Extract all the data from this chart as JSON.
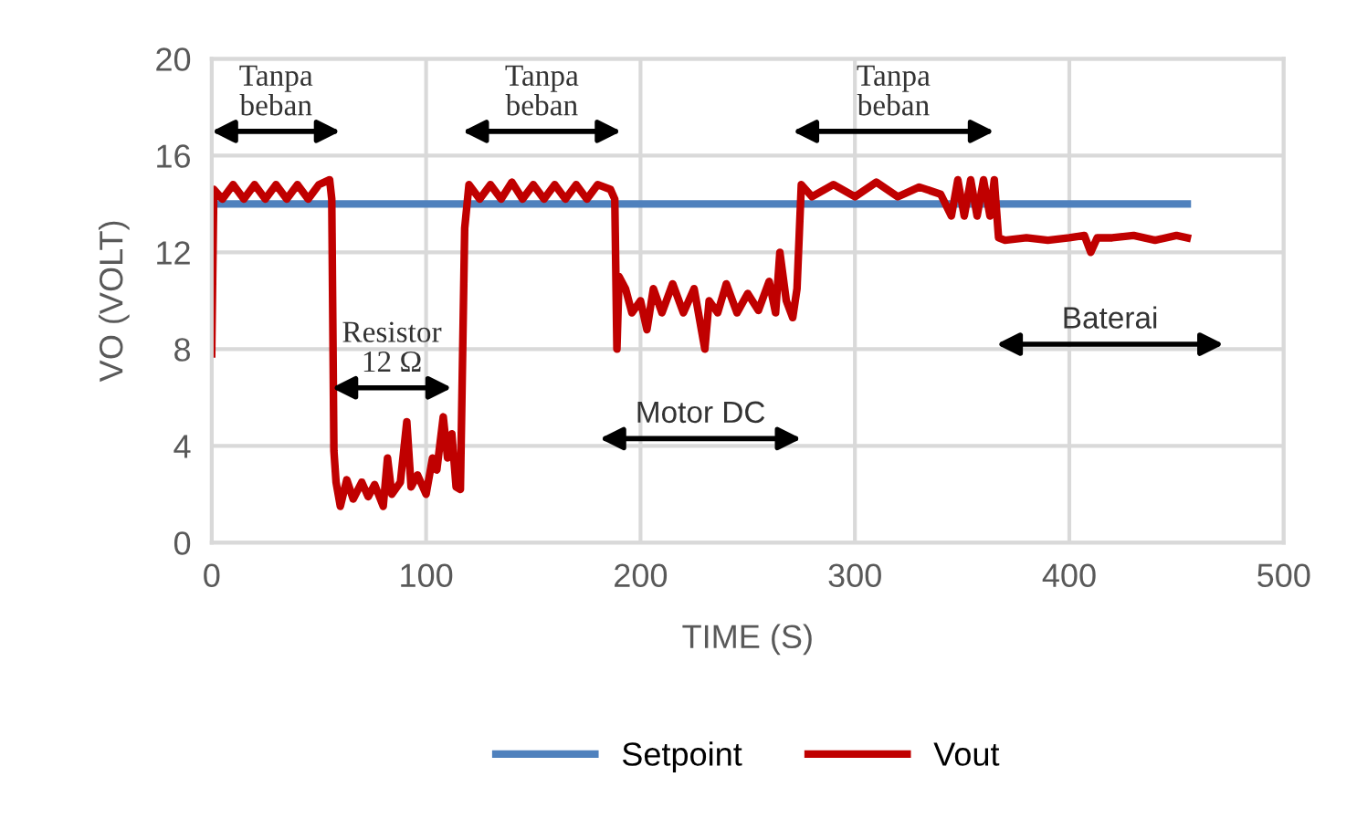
{
  "chart_data": {
    "type": "line",
    "xlabel": "TIME (S)",
    "ylabel": "VO (VOLT)",
    "xlim": [
      0,
      500
    ],
    "xticks": [
      0,
      100,
      200,
      300,
      400,
      500
    ],
    "ylim": [
      0,
      20
    ],
    "yticks": [
      0,
      4,
      8,
      12,
      16,
      20
    ],
    "grid": true,
    "legend": "bottom",
    "marker": "none",
    "line_style": "solid",
    "series": [
      {
        "name": "Setpoint",
        "color": "#4f81bd",
        "x": [
          0,
          455
        ],
        "values": [
          14,
          14
        ]
      },
      {
        "name": "Vout",
        "color": "#c00000",
        "x": [
          0,
          1,
          5,
          10,
          15,
          20,
          25,
          30,
          35,
          40,
          45,
          50,
          55,
          56,
          57,
          58,
          60,
          63,
          66,
          70,
          73,
          76,
          80,
          82,
          84,
          88,
          91,
          93,
          96,
          100,
          103,
          105,
          108,
          110,
          112,
          114,
          116,
          118,
          120,
          125,
          130,
          135,
          140,
          145,
          150,
          155,
          160,
          165,
          170,
          175,
          180,
          186,
          188,
          189,
          190,
          193,
          196,
          200,
          203,
          206,
          210,
          215,
          220,
          225,
          230,
          232,
          236,
          240,
          245,
          250,
          255,
          260,
          263,
          265,
          268,
          271,
          273,
          275,
          280,
          290,
          300,
          310,
          320,
          330,
          340,
          345,
          348,
          351,
          354,
          357,
          360,
          363,
          365,
          367,
          370,
          380,
          390,
          400,
          407,
          410,
          413,
          420,
          430,
          440,
          450,
          455
        ],
        "values": [
          7.8,
          14.6,
          14.2,
          14.8,
          14.2,
          14.8,
          14.2,
          14.8,
          14.2,
          14.8,
          14.2,
          14.8,
          15.0,
          14.2,
          3.8,
          2.5,
          1.5,
          2.6,
          1.8,
          2.5,
          1.9,
          2.4,
          1.5,
          3.5,
          2.0,
          2.5,
          5.0,
          2.3,
          2.8,
          2.0,
          3.5,
          3.0,
          5.2,
          3.5,
          4.5,
          2.3,
          2.2,
          13.0,
          14.8,
          14.2,
          14.8,
          14.2,
          14.9,
          14.2,
          14.8,
          14.2,
          14.8,
          14.2,
          14.8,
          14.2,
          14.8,
          14.6,
          14.2,
          8.0,
          11.0,
          10.5,
          9.5,
          10.0,
          8.8,
          10.5,
          9.5,
          10.7,
          9.5,
          10.5,
          8.0,
          10.0,
          9.5,
          10.7,
          9.5,
          10.3,
          9.6,
          10.8,
          9.5,
          12.0,
          10.0,
          9.3,
          10.5,
          14.8,
          14.3,
          14.8,
          14.3,
          14.9,
          14.3,
          14.7,
          14.4,
          13.5,
          15.0,
          13.5,
          15.0,
          13.5,
          15.0,
          13.5,
          15.0,
          12.6,
          12.5,
          12.6,
          12.5,
          12.6,
          12.7,
          12.0,
          12.6,
          12.6,
          12.7,
          12.5,
          12.7,
          12.6
        ]
      }
    ],
    "annotations": [
      "Tanpa\nbeban",
      "Tanpa\nbeban",
      "Resistor\n12 Ω",
      "Motor DC",
      "Tanpa\nbeban",
      "Baterai"
    ]
  }
}
